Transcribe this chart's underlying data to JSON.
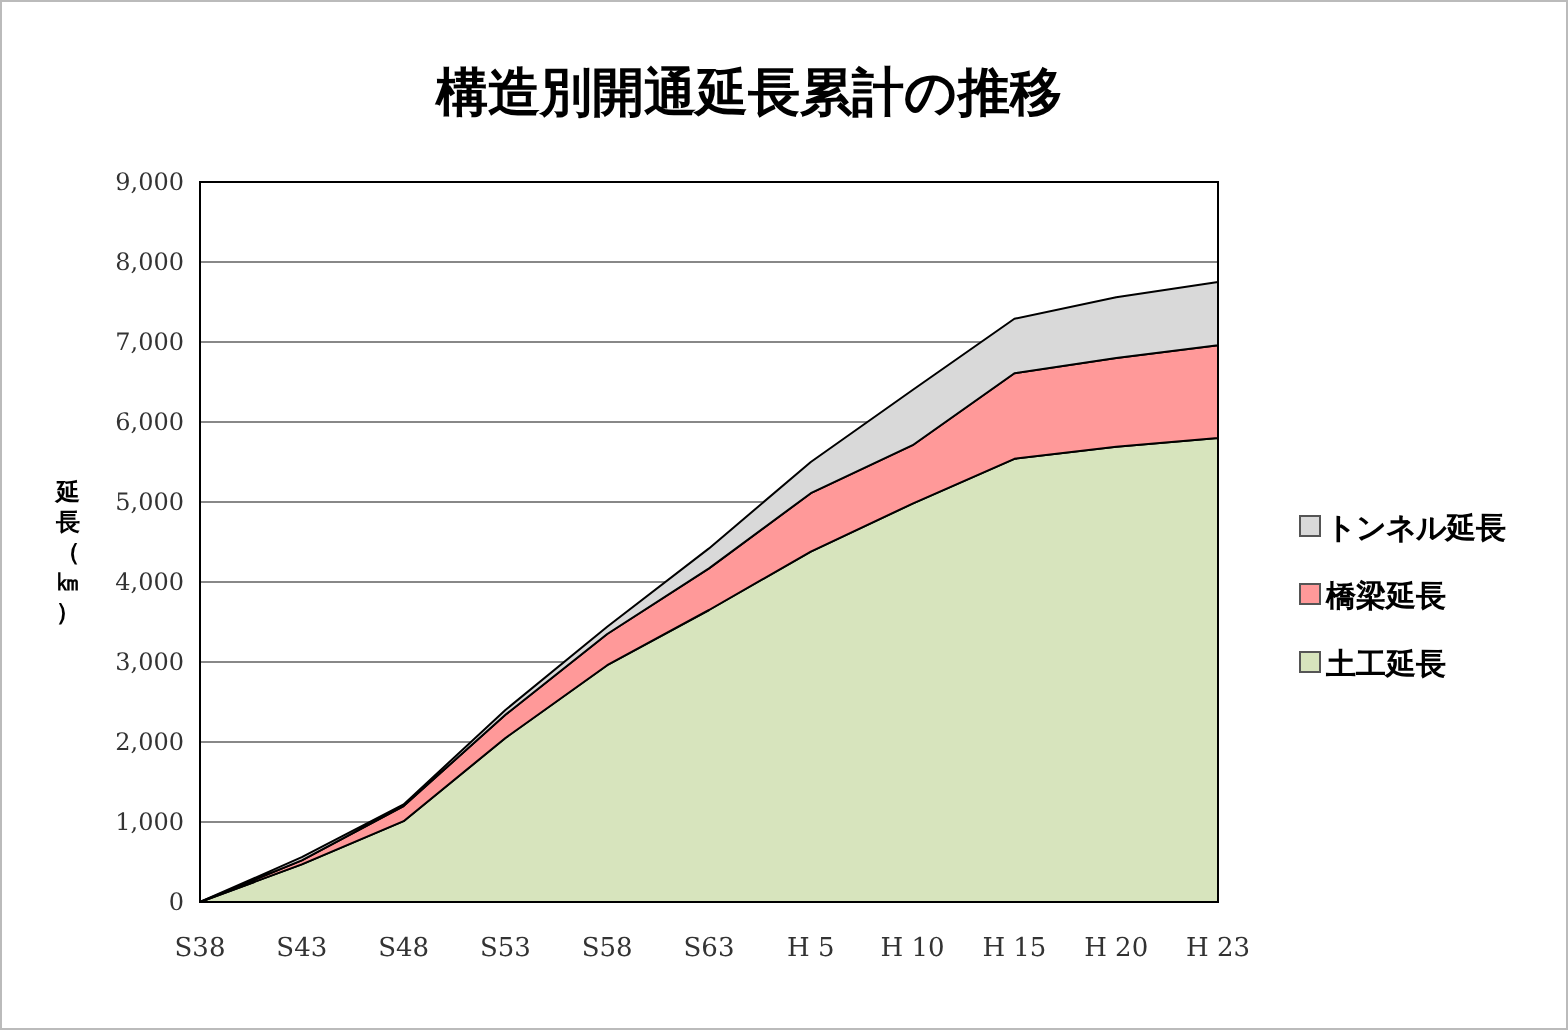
{
  "chart_data": {
    "type": "area",
    "stacked": true,
    "title": "構造別開通延長累計の推移",
    "ylabel": "延長（㎞）",
    "categories": [
      "S38",
      "S43",
      "S48",
      "S53",
      "S58",
      "S63",
      "H 5",
      "H 10",
      "H 15",
      "H 20",
      "H 23"
    ],
    "series": [
      {
        "name": "土工延長",
        "color": "#d7e4bd",
        "values": [
          0,
          470,
          1010,
          2050,
          2960,
          3650,
          4380,
          4980,
          5540,
          5690,
          5800
        ]
      },
      {
        "name": "橋梁延長",
        "color": "#ff9999",
        "values": [
          0,
          50,
          190,
          290,
          390,
          520,
          730,
          730,
          1070,
          1110,
          1160
        ]
      },
      {
        "name": "トンネル延長",
        "color": "#d9d9d9",
        "values": [
          0,
          40,
          20,
          60,
          90,
          250,
          390,
          690,
          680,
          760,
          790
        ]
      }
    ],
    "ylim": [
      0,
      9000
    ],
    "yticks": [
      0,
      {
        "value": 1000,
        "label": "1,000"
      },
      {
        "value": 2000,
        "label": "2,000"
      },
      {
        "value": 3000,
        "label": "3,000"
      },
      {
        "value": 4000,
        "label": "4,000"
      },
      {
        "value": 5000,
        "label": "5,000"
      },
      {
        "value": 6000,
        "label": "6,000"
      },
      {
        "value": 7000,
        "label": "7,000"
      },
      {
        "value": 8000,
        "label": "8,000"
      },
      {
        "value": 9000,
        "label": "9,000"
      }
    ],
    "grid": "y",
    "legend": "right"
  }
}
